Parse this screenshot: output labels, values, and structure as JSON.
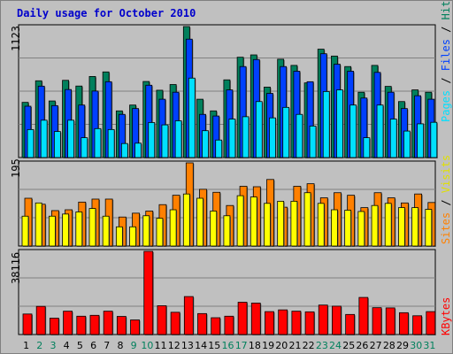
{
  "title": "Daily usage for October 2010",
  "colors": {
    "background": "#c0c0c0",
    "hits": "#00805c",
    "files": "#0040ff",
    "pages": "#00e0ff",
    "visits": "#ffff00",
    "sites": "#ff8000",
    "kbytes": "#ff0000",
    "weekday_label": "#000000",
    "weekend_label": "#00805c",
    "title": "#0000cc"
  },
  "legend": {
    "pages": "Pages",
    "files": "Files",
    "hits": "Hits",
    "sites": "Sites",
    "visits": "Visits",
    "kbytes": "KBytes",
    "sep": " / "
  },
  "chart_data": {
    "type": "bar",
    "title": "Daily usage for October 2010",
    "categories": [
      "1",
      "2",
      "3",
      "4",
      "5",
      "6",
      "7",
      "8",
      "9",
      "10",
      "11",
      "12",
      "13",
      "14",
      "15",
      "16",
      "17",
      "18",
      "19",
      "20",
      "21",
      "22",
      "23",
      "24",
      "25",
      "26",
      "27",
      "28",
      "29",
      "30",
      "31"
    ],
    "weekend_days": [
      "2",
      "3",
      "9",
      "10",
      "16",
      "17",
      "23",
      "24",
      "30",
      "31"
    ],
    "panels": [
      {
        "name": "hits-files-pages",
        "ymax_label": "1123",
        "ymax": 1123,
        "series": [
          {
            "name": "Hits",
            "values": [
              473,
              658,
              485,
              662,
              613,
              695,
              734,
              400,
              450,
              652,
              577,
              626,
              1123,
              500,
              400,
              666,
              860,
              880,
              604,
              843,
              790,
              640,
              929,
              870,
              780,
              560,
              790,
              610,
              480,
              580,
              560
            ]
          },
          {
            "name": "Files",
            "values": [
              440,
              612,
              445,
              583,
              450,
              570,
              650,
              370,
              420,
              620,
              500,
              560,
              1015,
              370,
              356,
              580,
              780,
              840,
              550,
              780,
              740,
              650,
              890,
              800,
              740,
              510,
              730,
              560,
              420,
              530,
              500
            ]
          },
          {
            "name": "Pages",
            "values": [
              240,
              320,
              223,
              320,
              170,
              248,
              240,
              120,
              123,
              300,
              280,
              315,
              681,
              230,
              150,
              330,
              350,
              480,
              340,
              430,
              370,
              270,
              566,
              580,
              450,
              170,
              450,
              330,
              227,
              289,
              302
            ]
          }
        ]
      },
      {
        "name": "sites-visits",
        "ymax_label": "195",
        "ymax": 195,
        "series": [
          {
            "name": "Sites",
            "values": [
              112,
              98,
              83,
              85,
              103,
              110,
              110,
              68,
              77,
              82,
              97,
              119,
              195,
              133,
              126,
              95,
              140,
              139,
              156,
              91,
              140,
              146,
              113,
              125,
              119,
              90,
              125,
              113,
              101,
              122,
              102
            ]
          },
          {
            "name": "Visits",
            "values": [
              70,
              101,
              70,
              75,
              80,
              88,
              70,
              45,
              45,
              71,
              65,
              85,
              122,
              112,
              82,
              71,
              118,
              115,
              100,
              105,
              105,
              125,
              100,
              85,
              84,
              81,
              95,
              100,
              90,
              90,
              86
            ]
          }
        ]
      },
      {
        "name": "kbytes",
        "ymax_label": "38116",
        "ymax": 38116,
        "series": [
          {
            "name": "KBytes",
            "values": [
              9400,
              12900,
              7500,
              10700,
              8400,
              8800,
              10700,
              8300,
              6700,
              38116,
              13200,
              10200,
              17400,
              9600,
              7700,
              8400,
              14800,
              14400,
              10500,
              11300,
              10700,
              10400,
              13500,
              13000,
              9200,
              17000,
              12300,
              12200,
              10000,
              8600,
              10500
            ]
          }
        ]
      }
    ]
  }
}
